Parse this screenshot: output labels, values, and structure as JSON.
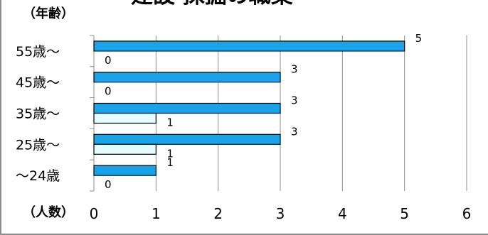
{
  "chart_data": {
    "type": "bar",
    "orientation": "horizontal",
    "title": "建設 採掘の職業",
    "ylabel": "（年齢）",
    "xlabel": "（人数）",
    "categories": [
      "55歳～",
      "45歳～",
      "35歳～",
      "25歳～",
      "～24歳"
    ],
    "series": [
      {
        "values": [
          5,
          3,
          3,
          3,
          1
        ],
        "color": "#1aa3e8"
      },
      {
        "values": [
          0,
          0,
          1,
          1,
          0
        ],
        "color": "#e4fbff"
      }
    ],
    "xlim": [
      0,
      6
    ],
    "x_ticks": [
      0,
      1,
      2,
      3,
      4,
      5,
      6
    ],
    "grid": true,
    "legend": "none"
  }
}
